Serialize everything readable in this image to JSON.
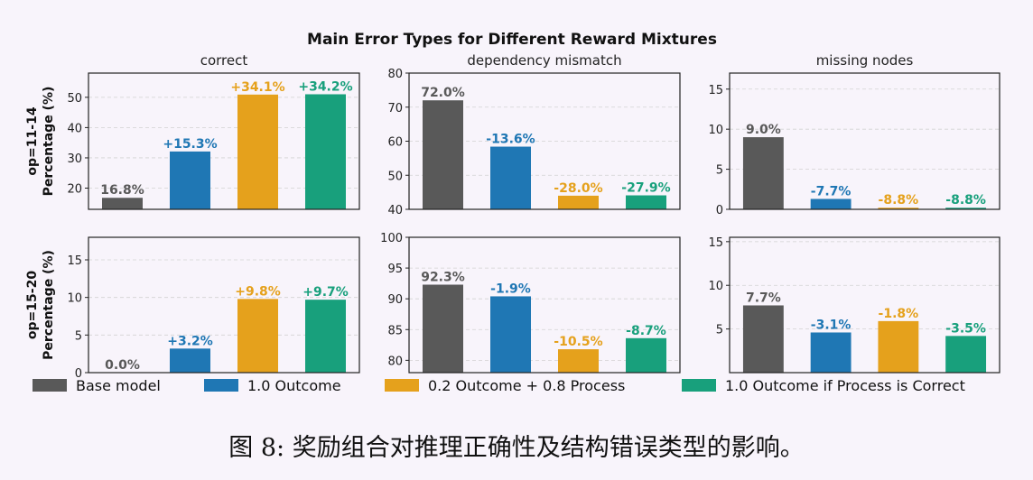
{
  "figure": {
    "suptitle": "Main Error Types for Different Reward Mixtures",
    "caption": "图 8: 奖励组合对推理正确性及结构错误类型的影响。"
  },
  "legend": {
    "placement": "bottom",
    "entries": [
      {
        "label": "Base model",
        "color": "#595959"
      },
      {
        "label": "1.0 Outcome",
        "color": "#1f77b4"
      },
      {
        "label": "0.2 Outcome + 0.8 Process",
        "color": "#e5a11c"
      },
      {
        "label": "1.0 Outcome if Process is Correct",
        "color": "#18a07c"
      }
    ]
  },
  "chart_data": [
    {
      "type": "bar",
      "row": "op=11-14",
      "title": "correct",
      "ylabel": "op=11-14\nPercentage (%)",
      "ylim": [
        13,
        58
      ],
      "yticks": [
        20,
        30,
        40,
        50
      ],
      "grid": true,
      "values": [
        16.8,
        32.1,
        50.9,
        51.0
      ],
      "labels": [
        "16.8%",
        "+15.3%",
        "+34.1%",
        "+34.2%"
      ]
    },
    {
      "type": "bar",
      "row": "op=11-14",
      "title": "dependency mismatch",
      "ylabel": "",
      "ylim": [
        40,
        80
      ],
      "yticks": [
        40,
        50,
        60,
        70,
        80
      ],
      "grid": true,
      "values": [
        72.0,
        58.4,
        44.0,
        44.1
      ],
      "labels": [
        "72.0%",
        "-13.6%",
        "-28.0%",
        "-27.9%"
      ]
    },
    {
      "type": "bar",
      "row": "op=11-14",
      "title": "missing nodes",
      "ylabel": "",
      "ylim": [
        0,
        17
      ],
      "yticks": [
        0,
        5,
        10,
        15
      ],
      "grid": true,
      "values": [
        9.0,
        1.3,
        0.2,
        0.2
      ],
      "labels": [
        "9.0%",
        "-7.7%",
        "-8.8%",
        "-8.8%"
      ]
    },
    {
      "type": "bar",
      "row": "op=15-20",
      "title": "",
      "ylabel": "op=15-20\nPercentage (%)",
      "ylim": [
        0,
        18
      ],
      "yticks": [
        0,
        5,
        10,
        15
      ],
      "grid": true,
      "values": [
        0.0,
        3.2,
        9.8,
        9.7
      ],
      "labels": [
        "0.0%",
        "+3.2%",
        "+9.8%",
        "+9.7%"
      ]
    },
    {
      "type": "bar",
      "row": "op=15-20",
      "title": "",
      "ylabel": "",
      "ylim": [
        78,
        100
      ],
      "yticks": [
        80,
        85,
        90,
        95,
        100
      ],
      "grid": true,
      "values": [
        92.3,
        90.4,
        81.8,
        83.6
      ],
      "labels": [
        "92.3%",
        "-1.9%",
        "-10.5%",
        "-8.7%"
      ]
    },
    {
      "type": "bar",
      "row": "op=15-20",
      "title": "",
      "ylabel": "",
      "ylim": [
        0,
        15.5
      ],
      "yticks": [
        5,
        10,
        15
      ],
      "grid": true,
      "values": [
        7.7,
        4.6,
        5.9,
        4.2
      ],
      "labels": [
        "7.7%",
        "-3.1%",
        "-1.8%",
        "-3.5%"
      ]
    }
  ]
}
